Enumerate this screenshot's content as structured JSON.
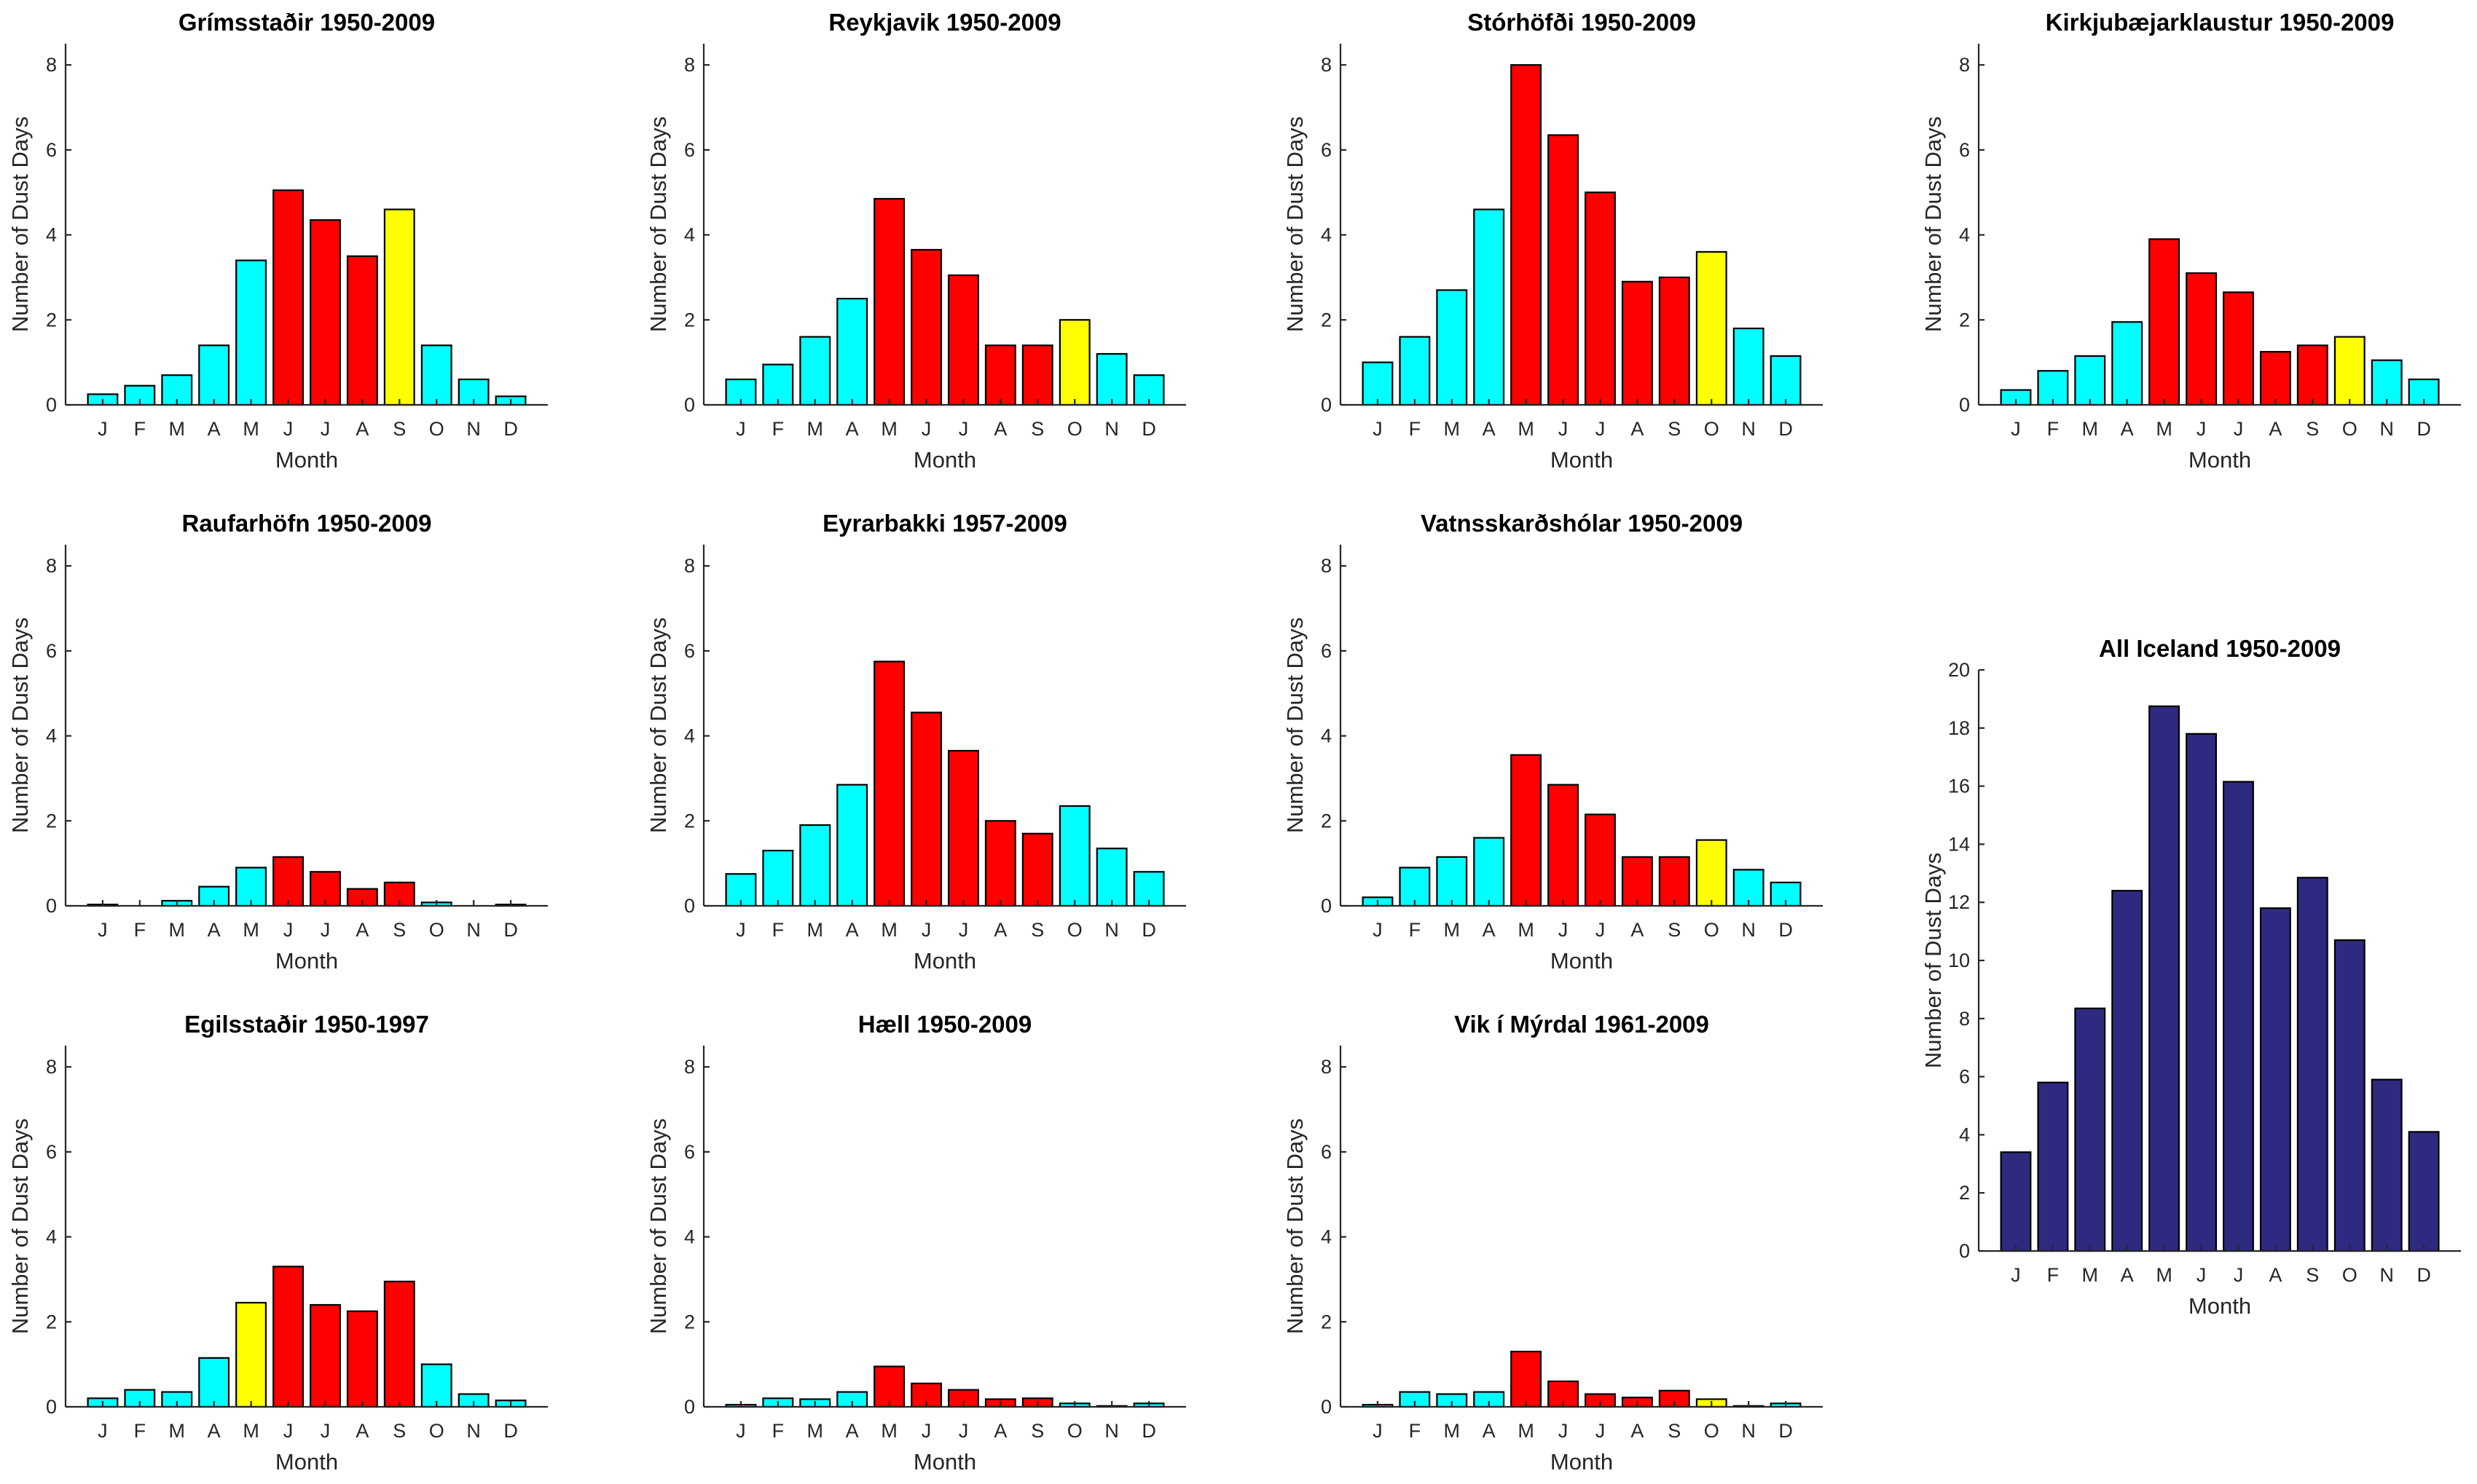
{
  "colors": {
    "spring_autumn": "#00ffff",
    "summer": "#ff0000",
    "peak_autumn": "#ffff00",
    "all_iceland": "#2e2a80"
  },
  "chart_data": [
    {
      "type": "bar",
      "title": "Grímsstaðir 1950-2009",
      "xlabel": "Month",
      "ylabel": "Number of Dust Days",
      "ylim": [
        0,
        8.5
      ],
      "yticks": [
        0,
        2,
        4,
        6,
        8
      ],
      "categories": [
        "J",
        "F",
        "M",
        "A",
        "M",
        "J",
        "J",
        "A",
        "S",
        "O",
        "N",
        "D"
      ],
      "values": [
        0.25,
        0.45,
        0.7,
        1.4,
        3.4,
        5.05,
        4.35,
        3.5,
        4.6,
        1.4,
        0.6,
        0.2
      ],
      "colors": [
        "#00ffff",
        "#00ffff",
        "#00ffff",
        "#00ffff",
        "#00ffff",
        "#ff0000",
        "#ff0000",
        "#ff0000",
        "#ffff00",
        "#00ffff",
        "#00ffff",
        "#00ffff"
      ]
    },
    {
      "type": "bar",
      "title": "Reykjavik 1950-2009",
      "xlabel": "Month",
      "ylabel": "Number of Dust Days",
      "ylim": [
        0,
        8.5
      ],
      "yticks": [
        0,
        2,
        4,
        6,
        8
      ],
      "categories": [
        "J",
        "F",
        "M",
        "A",
        "M",
        "J",
        "J",
        "A",
        "S",
        "O",
        "N",
        "D"
      ],
      "values": [
        0.6,
        0.95,
        1.6,
        2.5,
        4.85,
        3.65,
        3.05,
        1.4,
        1.4,
        2.0,
        1.2,
        0.7
      ],
      "colors": [
        "#00ffff",
        "#00ffff",
        "#00ffff",
        "#00ffff",
        "#ff0000",
        "#ff0000",
        "#ff0000",
        "#ff0000",
        "#ff0000",
        "#ffff00",
        "#00ffff",
        "#00ffff"
      ]
    },
    {
      "type": "bar",
      "title": "Stórhöfði 1950-2009",
      "xlabel": "Month",
      "ylabel": "Number of Dust Days",
      "ylim": [
        0,
        8.5
      ],
      "yticks": [
        0,
        2,
        4,
        6,
        8
      ],
      "categories": [
        "J",
        "F",
        "M",
        "A",
        "M",
        "J",
        "J",
        "A",
        "S",
        "O",
        "N",
        "D"
      ],
      "values": [
        1.0,
        1.6,
        2.7,
        4.6,
        8.0,
        6.35,
        5.0,
        2.9,
        3.0,
        3.6,
        1.8,
        1.15
      ],
      "colors": [
        "#00ffff",
        "#00ffff",
        "#00ffff",
        "#00ffff",
        "#ff0000",
        "#ff0000",
        "#ff0000",
        "#ff0000",
        "#ff0000",
        "#ffff00",
        "#00ffff",
        "#00ffff"
      ]
    },
    {
      "type": "bar",
      "title": "Kirkjubæjarklaustur 1950-2009",
      "xlabel": "Month",
      "ylabel": "Number of Dust Days",
      "ylim": [
        0,
        8.5
      ],
      "yticks": [
        0,
        2,
        4,
        6,
        8
      ],
      "categories": [
        "J",
        "F",
        "M",
        "A",
        "M",
        "J",
        "J",
        "A",
        "S",
        "O",
        "N",
        "D"
      ],
      "values": [
        0.35,
        0.8,
        1.15,
        1.95,
        3.9,
        3.1,
        2.65,
        1.25,
        1.4,
        1.6,
        1.05,
        0.6
      ],
      "colors": [
        "#00ffff",
        "#00ffff",
        "#00ffff",
        "#00ffff",
        "#ff0000",
        "#ff0000",
        "#ff0000",
        "#ff0000",
        "#ff0000",
        "#ffff00",
        "#00ffff",
        "#00ffff"
      ]
    },
    {
      "type": "bar",
      "title": "Raufarhöfn 1950-2009",
      "xlabel": "Month",
      "ylabel": "Number of Dust Days",
      "ylim": [
        0,
        8.5
      ],
      "yticks": [
        0,
        2,
        4,
        6,
        8
      ],
      "categories": [
        "J",
        "F",
        "M",
        "A",
        "M",
        "J",
        "J",
        "A",
        "S",
        "O",
        "N",
        "D"
      ],
      "values": [
        0.03,
        0.0,
        0.12,
        0.45,
        0.9,
        1.15,
        0.8,
        0.4,
        0.55,
        0.08,
        0.0,
        0.03
      ],
      "colors": [
        "#00ffff",
        "#00ffff",
        "#00ffff",
        "#00ffff",
        "#00ffff",
        "#ff0000",
        "#ff0000",
        "#ff0000",
        "#ff0000",
        "#00ffff",
        "#00ffff",
        "#00ffff"
      ]
    },
    {
      "type": "bar",
      "title": "Eyrarbakki 1957-2009",
      "xlabel": "Month",
      "ylabel": "Number of Dust Days",
      "ylim": [
        0,
        8.5
      ],
      "yticks": [
        0,
        2,
        4,
        6,
        8
      ],
      "categories": [
        "J",
        "F",
        "M",
        "A",
        "M",
        "J",
        "J",
        "A",
        "S",
        "O",
        "N",
        "D"
      ],
      "values": [
        0.75,
        1.3,
        1.9,
        2.85,
        5.75,
        4.55,
        3.65,
        2.0,
        1.7,
        2.35,
        1.35,
        0.8
      ],
      "colors": [
        "#00ffff",
        "#00ffff",
        "#00ffff",
        "#00ffff",
        "#ff0000",
        "#ff0000",
        "#ff0000",
        "#ff0000",
        "#ff0000",
        "#00ffff",
        "#00ffff",
        "#00ffff"
      ]
    },
    {
      "type": "bar",
      "title": "Vatnsskarðshólar 1950-2009",
      "xlabel": "Month",
      "ylabel": "Number of Dust Days",
      "ylim": [
        0,
        8.5
      ],
      "yticks": [
        0,
        2,
        4,
        6,
        8
      ],
      "categories": [
        "J",
        "F",
        "M",
        "A",
        "M",
        "J",
        "J",
        "A",
        "S",
        "O",
        "N",
        "D"
      ],
      "values": [
        0.2,
        0.9,
        1.15,
        1.6,
        3.55,
        2.85,
        2.15,
        1.15,
        1.15,
        1.55,
        0.85,
        0.55
      ],
      "colors": [
        "#00ffff",
        "#00ffff",
        "#00ffff",
        "#00ffff",
        "#ff0000",
        "#ff0000",
        "#ff0000",
        "#ff0000",
        "#ff0000",
        "#ffff00",
        "#00ffff",
        "#00ffff"
      ]
    },
    {
      "type": "bar",
      "title": "Egilsstaðir 1950-1997",
      "xlabel": "Month",
      "ylabel": "Number of Dust Days",
      "ylim": [
        0,
        8.5
      ],
      "yticks": [
        0,
        2,
        4,
        6,
        8
      ],
      "categories": [
        "J",
        "F",
        "M",
        "A",
        "M",
        "J",
        "J",
        "A",
        "S",
        "O",
        "N",
        "D"
      ],
      "values": [
        0.2,
        0.4,
        0.35,
        1.15,
        2.45,
        3.3,
        2.4,
        2.25,
        2.95,
        1.0,
        0.3,
        0.15
      ],
      "colors": [
        "#00ffff",
        "#00ffff",
        "#00ffff",
        "#00ffff",
        "#ffff00",
        "#ff0000",
        "#ff0000",
        "#ff0000",
        "#ff0000",
        "#00ffff",
        "#00ffff",
        "#00ffff"
      ]
    },
    {
      "type": "bar",
      "title": "Hæll 1950-2009",
      "xlabel": "Month",
      "ylabel": "Number of Dust Days",
      "ylim": [
        0,
        8.5
      ],
      "yticks": [
        0,
        2,
        4,
        6,
        8
      ],
      "categories": [
        "J",
        "F",
        "M",
        "A",
        "M",
        "J",
        "J",
        "A",
        "S",
        "O",
        "N",
        "D"
      ],
      "values": [
        0.05,
        0.2,
        0.18,
        0.35,
        0.95,
        0.55,
        0.4,
        0.18,
        0.2,
        0.08,
        0.02,
        0.08
      ],
      "colors": [
        "#00ffff",
        "#00ffff",
        "#00ffff",
        "#00ffff",
        "#ff0000",
        "#ff0000",
        "#ff0000",
        "#ff0000",
        "#ff0000",
        "#00ffff",
        "#00ffff",
        "#00ffff"
      ]
    },
    {
      "type": "bar",
      "title": "Vik í Mýrdal 1961-2009",
      "xlabel": "Month",
      "ylabel": "Number of Dust Days",
      "ylim": [
        0,
        8.5
      ],
      "yticks": [
        0,
        2,
        4,
        6,
        8
      ],
      "categories": [
        "J",
        "F",
        "M",
        "A",
        "M",
        "J",
        "J",
        "A",
        "S",
        "O",
        "N",
        "D"
      ],
      "values": [
        0.05,
        0.35,
        0.3,
        0.35,
        1.3,
        0.6,
        0.3,
        0.22,
        0.38,
        0.18,
        0.02,
        0.08
      ],
      "colors": [
        "#00ffff",
        "#00ffff",
        "#00ffff",
        "#00ffff",
        "#ff0000",
        "#ff0000",
        "#ff0000",
        "#ff0000",
        "#ff0000",
        "#ffff00",
        "#00ffff",
        "#00ffff"
      ]
    },
    {
      "type": "bar",
      "title": "All Iceland 1950-2009",
      "xlabel": "Month",
      "ylabel": "Number of Dust Days",
      "ylim": [
        0,
        20
      ],
      "yticks": [
        0,
        2,
        4,
        6,
        8,
        10,
        12,
        14,
        16,
        18,
        20
      ],
      "categories": [
        "J",
        "F",
        "M",
        "A",
        "M",
        "J",
        "J",
        "A",
        "S",
        "O",
        "N",
        "D"
      ],
      "values": [
        3.4,
        5.8,
        8.35,
        12.4,
        18.75,
        17.8,
        16.15,
        11.8,
        12.85,
        10.7,
        5.9,
        4.1
      ],
      "colors": [
        "#2e2a80",
        "#2e2a80",
        "#2e2a80",
        "#2e2a80",
        "#2e2a80",
        "#2e2a80",
        "#2e2a80",
        "#2e2a80",
        "#2e2a80",
        "#2e2a80",
        "#2e2a80",
        "#2e2a80"
      ]
    }
  ]
}
